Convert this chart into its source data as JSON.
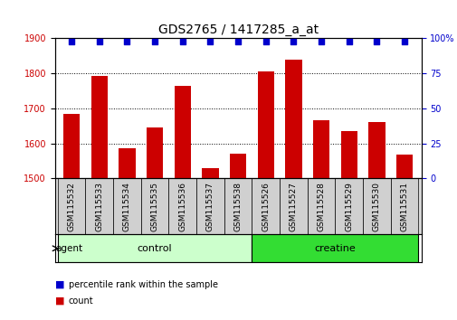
{
  "title": "GDS2765 / 1417285_a_at",
  "samples": [
    "GSM115532",
    "GSM115533",
    "GSM115534",
    "GSM115535",
    "GSM115536",
    "GSM115537",
    "GSM115538",
    "GSM115526",
    "GSM115527",
    "GSM115528",
    "GSM115529",
    "GSM115530",
    "GSM115531"
  ],
  "counts": [
    1685,
    1793,
    1585,
    1645,
    1765,
    1530,
    1570,
    1805,
    1840,
    1665,
    1635,
    1660,
    1568
  ],
  "percentiles": [
    99,
    99,
    99,
    99,
    99,
    99,
    99,
    99,
    99,
    99,
    99,
    99,
    99
  ],
  "groups": [
    "control",
    "control",
    "control",
    "control",
    "control",
    "control",
    "control",
    "creatine",
    "creatine",
    "creatine",
    "creatine",
    "creatine",
    "creatine"
  ],
  "control_color": "#ccffcc",
  "creatine_color": "#33dd33",
  "bar_color": "#CC0000",
  "dot_color": "#0000CC",
  "ylim_left": [
    1500,
    1900
  ],
  "ylim_right": [
    0,
    100
  ],
  "yticks_left": [
    1500,
    1600,
    1700,
    1800,
    1900
  ],
  "yticks_right": [
    0,
    25,
    50,
    75,
    100
  ],
  "xlabel_color": "#CC0000",
  "title_fontsize": 10,
  "tick_fontsize": 7,
  "legend_items": [
    "count",
    "percentile rank within the sample"
  ],
  "legend_colors": [
    "#CC0000",
    "#0000CC"
  ],
  "agent_label": "agent",
  "dot_size": 20
}
